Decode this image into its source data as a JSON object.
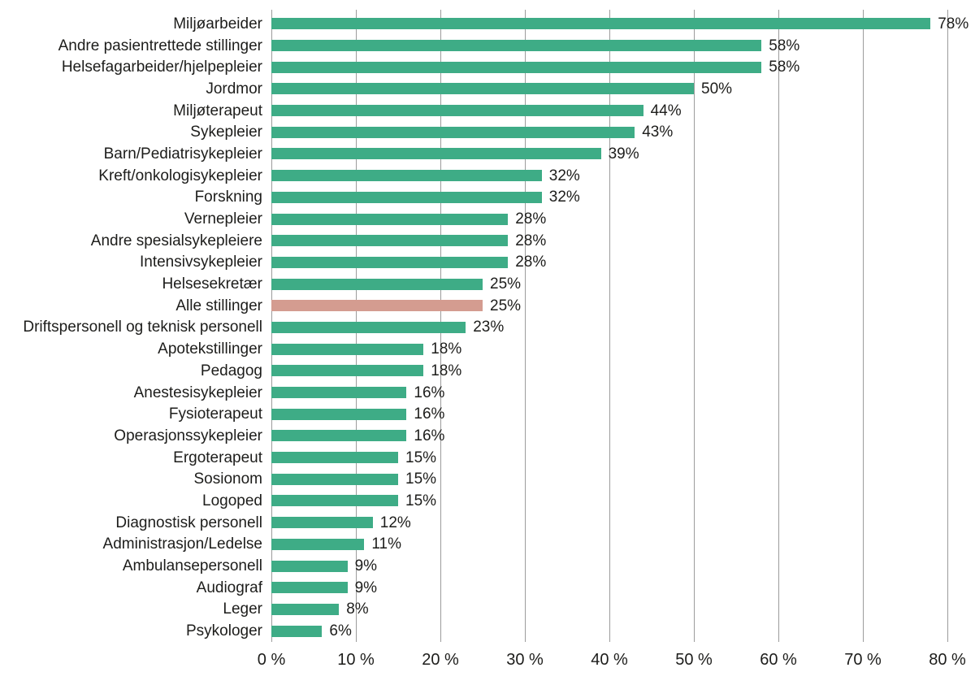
{
  "chart_data": {
    "type": "bar",
    "orientation": "horizontal",
    "title": "",
    "xlabel": "",
    "ylabel": "",
    "unit": "%",
    "xlim": [
      0,
      80
    ],
    "grid": "vertical",
    "x_ticks": [
      "0 %",
      "10 %",
      "20 %",
      "30 %",
      "40 %",
      "50 %",
      "60 %",
      "70 %",
      "80 %"
    ],
    "categories": [
      "Miljøarbeider",
      "Andre pasientrettede stillinger",
      "Helsefagarbeider/hjelpepleier",
      "Jordmor",
      "Miljøterapeut",
      "Sykepleier",
      "Barn/Pediatrisykepleier",
      "Kreft/onkologisykepleier",
      "Forskning",
      "Vernepleier",
      "Andre spesialsykepleiere",
      "Intensivsykepleier",
      "Helsesekretær",
      "Alle stillinger",
      "Driftspersonell og teknisk personell",
      "Apotekstillinger",
      "Pedagog",
      "Anestesisykepleier",
      "Fysioterapeut",
      "Operasjonssykepleier",
      "Ergoterapeut",
      "Sosionom",
      "Logoped",
      "Diagnostisk personell",
      "Administrasjon/Ledelse",
      "Ambulansepersonell",
      "Audiograf",
      "Leger",
      "Psykologer"
    ],
    "values": [
      78,
      58,
      58,
      50,
      44,
      43,
      39,
      32,
      32,
      28,
      28,
      28,
      25,
      25,
      23,
      18,
      18,
      16,
      16,
      16,
      15,
      15,
      15,
      12,
      11,
      9,
      9,
      8,
      6
    ],
    "value_labels": [
      "78%",
      "58%",
      "58%",
      "50%",
      "44%",
      "43%",
      "39%",
      "32%",
      "32%",
      "28%",
      "28%",
      "28%",
      "25%",
      "25%",
      "23%",
      "18%",
      "18%",
      "16%",
      "16%",
      "16%",
      "15%",
      "15%",
      "15%",
      "12%",
      "11%",
      "9%",
      "9%",
      "8%",
      "6%"
    ],
    "highlight_category": "Alle stillinger",
    "highlight_index": 13,
    "series_color": "#3EAC86",
    "highlight_color": "#D49C90",
    "gridline_color": "#9c9c9c",
    "text_color": "#1d1d1b",
    "legend_position": "none"
  }
}
